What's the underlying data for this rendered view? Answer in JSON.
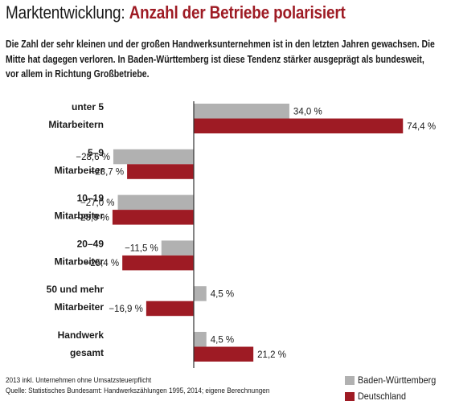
{
  "header": {
    "title_prefix": "Marktentwicklung: ",
    "title_accent": "Anzahl der Betriebe polarisiert",
    "subtitle": "Die Zahl der sehr kleinen und der großen Handwerksunternehmen ist in den letzten Jahren gewachsen. Die Mitte hat dagegen verloren. In Baden-Württemberg ist diese Tendenz stärker ausgeprägt als bundesweit, vor allem in Richtung Großbetriebe."
  },
  "colors": {
    "accent": "#9e1b24",
    "bw": "#b1b1b1",
    "de": "#9e1b24",
    "axis": "#333333"
  },
  "chart_data": {
    "type": "bar",
    "orientation": "horizontal",
    "unit": "%",
    "categories": [
      [
        "unter 5",
        "Mitarbeitern"
      ],
      [
        "5–9",
        "Mitarbeiter"
      ],
      [
        "10–19",
        "Mitarbeiter"
      ],
      [
        "20–49",
        "Mitarbeiter"
      ],
      [
        "50 und mehr",
        "Mitarbeiter"
      ],
      [
        "Handwerk",
        "gesamt"
      ]
    ],
    "series": [
      {
        "name": "Baden-Württemberg",
        "color": "#b1b1b1",
        "values": [
          34.0,
          -28.6,
          -27.0,
          -11.5,
          4.5,
          4.5
        ],
        "labels": [
          "34,0 %",
          "−28,6 %",
          "−27,0 %",
          "−11,5 %",
          "4,5 %",
          "4,5 %"
        ]
      },
      {
        "name": "Deutschland",
        "color": "#9e1b24",
        "values": [
          74.4,
          -23.7,
          -28.9,
          -25.4,
          -16.9,
          21.2
        ],
        "labels": [
          "74,4 %",
          "−23,7 %",
          "−28,9 %",
          "−25,4 %",
          "−16,9 %",
          "21,2 %"
        ]
      }
    ],
    "xlim": [
      -30,
      75
    ],
    "grid": false,
    "legend": "bottom-right"
  },
  "footnotes": {
    "line1": "2013 inkl. Unternehmen ohne Umsatzsteuerpflicht",
    "line2": "Quelle: Statistisches Bundesamt: Handwerkszählungen 1995, 2014; eigene Berechnungen"
  }
}
